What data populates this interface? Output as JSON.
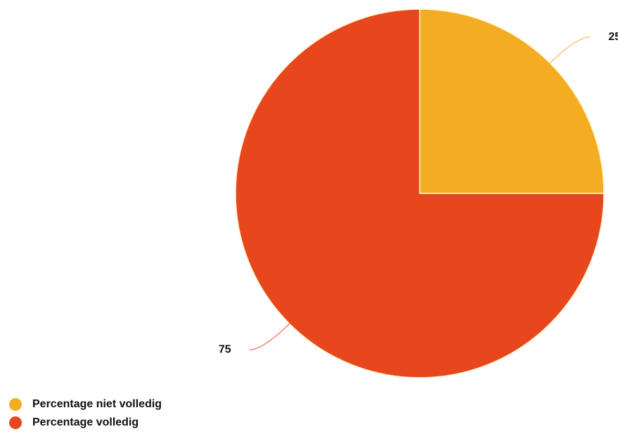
{
  "chart_data": {
    "type": "pie",
    "categories": [
      "Percentage niet volledig",
      "Percentage volledig"
    ],
    "values": [
      25,
      75
    ],
    "colors": [
      "#f4ac22",
      "#e8461d"
    ],
    "legend": "bottom-left"
  }
}
